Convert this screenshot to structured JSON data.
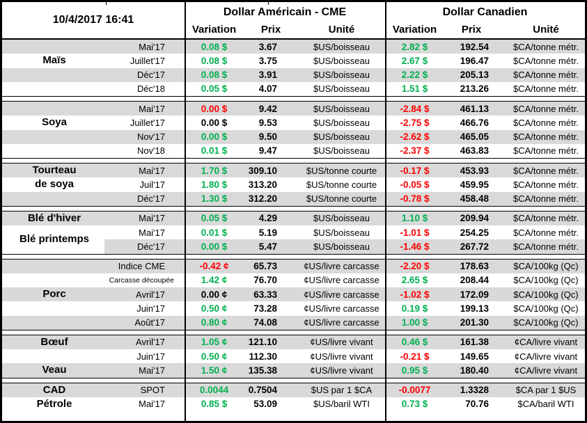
{
  "header": {
    "datetime": "10/4/2017 16:41",
    "us_group_title": "Dollar Américain - CME",
    "ca_group_title": "Dollar Canadien",
    "col_variation": "Variation",
    "col_prix": "Prix",
    "col_unite": "Unité"
  },
  "colors": {
    "green": "#00B050",
    "red": "#FF0000",
    "gray_row": "#D9D9D9",
    "border": "#000000"
  },
  "sections": [
    {
      "labels": [
        {
          "text": "Maïs",
          "row": 1,
          "span": 1
        }
      ],
      "rows": [
        {
          "month": "Mai'17",
          "us_var": "0.08 $",
          "us_var_color": "green",
          "us_prix": "3.67",
          "us_unit": "$US/boisseau",
          "ca_var": "2.82 $",
          "ca_var_color": "green",
          "ca_prix": "192.54",
          "ca_unit": "$CA/tonne métr.",
          "shade": "gray"
        },
        {
          "month": "Juillet'17",
          "us_var": "0.08 $",
          "us_var_color": "green",
          "us_prix": "3.75",
          "us_unit": "$US/boisseau",
          "ca_var": "2.67 $",
          "ca_var_color": "green",
          "ca_prix": "196.47",
          "ca_unit": "$CA/tonne métr.",
          "shade": "white"
        },
        {
          "month": "Déc'17",
          "us_var": "0.08 $",
          "us_var_color": "green",
          "us_prix": "3.91",
          "us_unit": "$US/boisseau",
          "ca_var": "2.22 $",
          "ca_var_color": "green",
          "ca_prix": "205.13",
          "ca_unit": "$CA/tonne métr.",
          "shade": "gray"
        },
        {
          "month": "Déc'18",
          "us_var": "0.05 $",
          "us_var_color": "green",
          "us_prix": "4.07",
          "us_unit": "$US/boisseau",
          "ca_var": "1.51 $",
          "ca_var_color": "green",
          "ca_prix": "213.26",
          "ca_unit": "$CA/tonne métr.",
          "shade": "white"
        }
      ]
    },
    {
      "labels": [
        {
          "text": "Soya",
          "row": 1,
          "span": 1
        }
      ],
      "rows": [
        {
          "month": "Mai'17",
          "us_var": "0.00 $",
          "us_var_color": "red",
          "us_prix": "9.42",
          "us_unit": "$US/boisseau",
          "ca_var": "-2.84 $",
          "ca_var_color": "red",
          "ca_prix": "461.13",
          "ca_unit": "$CA/tonne métr.",
          "shade": "gray"
        },
        {
          "month": "Juillet'17",
          "us_var": "0.00 $",
          "us_var_color": "black",
          "us_prix": "9.53",
          "us_unit": "$US/boisseau",
          "ca_var": "-2.75 $",
          "ca_var_color": "red",
          "ca_prix": "466.76",
          "ca_unit": "$CA/tonne métr.",
          "shade": "white"
        },
        {
          "month": "Nov'17",
          "us_var": "0.00 $",
          "us_var_color": "green",
          "us_prix": "9.50",
          "us_unit": "$US/boisseau",
          "ca_var": "-2.62 $",
          "ca_var_color": "red",
          "ca_prix": "465.05",
          "ca_unit": "$CA/tonne métr.",
          "shade": "gray"
        },
        {
          "month": "Nov'18",
          "us_var": "0.01 $",
          "us_var_color": "green",
          "us_prix": "9.47",
          "us_unit": "$US/boisseau",
          "ca_var": "-2.37 $",
          "ca_var_color": "red",
          "ca_prix": "463.83",
          "ca_unit": "$CA/tonne métr.",
          "shade": "white"
        }
      ]
    },
    {
      "labels": [
        {
          "text": "Tourteau\nde soya",
          "row": 0,
          "span": 2
        }
      ],
      "rows": [
        {
          "month": "Mai'17",
          "us_var": "1.70 $",
          "us_var_color": "green",
          "us_prix": "309.10",
          "us_unit": "$US/tonne courte",
          "ca_var": "-0.17 $",
          "ca_var_color": "red",
          "ca_prix": "453.93",
          "ca_unit": "$CA/tonne métr.",
          "shade": "gray"
        },
        {
          "month": "Juil'17",
          "us_var": "1.80 $",
          "us_var_color": "green",
          "us_prix": "313.20",
          "us_unit": "$US/tonne courte",
          "ca_var": "-0.05 $",
          "ca_var_color": "red",
          "ca_prix": "459.95",
          "ca_unit": "$CA/tonne métr.",
          "shade": "white"
        },
        {
          "month": "Déc'17",
          "us_var": "1.30 $",
          "us_var_color": "green",
          "us_prix": "312.20",
          "us_unit": "$US/tonne courte",
          "ca_var": "-0.78 $",
          "ca_var_color": "red",
          "ca_prix": "458.48",
          "ca_unit": "$CA/tonne métr.",
          "shade": "gray"
        }
      ]
    },
    {
      "labels": [
        {
          "text": "Blé d'hiver",
          "row": 0,
          "span": 1
        },
        {
          "text": "Blé printemps",
          "row": 1,
          "span": 2
        }
      ],
      "rows": [
        {
          "month": "Mai'17",
          "us_var": "0.05 $",
          "us_var_color": "green",
          "us_prix": "4.29",
          "us_unit": "$US/boisseau",
          "ca_var": "1.10 $",
          "ca_var_color": "green",
          "ca_prix": "209.94",
          "ca_unit": "$CA/tonne métr.",
          "shade": "gray"
        },
        {
          "month": "Mai'17",
          "us_var": "0.01 $",
          "us_var_color": "green",
          "us_prix": "5.19",
          "us_unit": "$US/boisseau",
          "ca_var": "-1.01 $",
          "ca_var_color": "red",
          "ca_prix": "254.25",
          "ca_unit": "$CA/tonne métr.",
          "shade": "white"
        },
        {
          "month": "Déc'17",
          "us_var": "0.00 $",
          "us_var_color": "green",
          "us_prix": "5.47",
          "us_unit": "$US/boisseau",
          "ca_var": "-1.46 $",
          "ca_var_color": "red",
          "ca_prix": "267.72",
          "ca_unit": "$CA/tonne métr.",
          "shade": "partial"
        }
      ]
    },
    {
      "labels": [
        {
          "text": "Porc",
          "row": 2,
          "span": 1
        }
      ],
      "rows": [
        {
          "month": "Indice CME",
          "us_var": "-0.42 ¢",
          "us_var_color": "red",
          "us_prix": "65.73",
          "us_unit": "¢US/livre carcasse",
          "ca_var": "-2.20 $",
          "ca_var_color": "red",
          "ca_prix": "178.63",
          "ca_unit": "$CA/100kg (Qc)",
          "shade": "gray"
        },
        {
          "month": "Carcasse découpée",
          "month_small": true,
          "us_var": "1.42 ¢",
          "us_var_color": "green",
          "us_prix": "76.70",
          "us_unit": "¢US/livre carcasse",
          "ca_var": "2.65 $",
          "ca_var_color": "green",
          "ca_prix": "208.44",
          "ca_unit": "$CA/100kg (Qc)",
          "shade": "white"
        },
        {
          "month": "Avril'17",
          "us_var": "0.00 ¢",
          "us_var_color": "black",
          "us_prix": "63.33",
          "us_unit": "¢US/livre carcasse",
          "ca_var": "-1.02 $",
          "ca_var_color": "red",
          "ca_prix": "172.09",
          "ca_unit": "$CA/100kg (Qc)",
          "shade": "gray"
        },
        {
          "month": "Juin'17",
          "us_var": "0.50 ¢",
          "us_var_color": "green",
          "us_prix": "73.28",
          "us_unit": "¢US/livre carcasse",
          "ca_var": "0.19 $",
          "ca_var_color": "green",
          "ca_prix": "199.13",
          "ca_unit": "$CA/100kg (Qc)",
          "shade": "white"
        },
        {
          "month": "Août'17",
          "us_var": "0.80 ¢",
          "us_var_color": "green",
          "us_prix": "74.08",
          "us_unit": "¢US/livre carcasse",
          "ca_var": "1.00 $",
          "ca_var_color": "green",
          "ca_prix": "201.30",
          "ca_unit": "$CA/100kg (Qc)",
          "shade": "gray"
        }
      ]
    },
    {
      "labels": [
        {
          "text": "Bœuf",
          "row": 0,
          "span": 1
        },
        {
          "text": "Veau",
          "row": 2,
          "span": 1
        }
      ],
      "rows": [
        {
          "month": "Avril'17",
          "us_var": "1.05 ¢",
          "us_var_color": "green",
          "us_prix": "121.10",
          "us_unit": "¢US/livre vivant",
          "ca_var": "0.46 $",
          "ca_var_color": "green",
          "ca_prix": "161.38",
          "ca_unit": "¢CA/livre vivant",
          "shade": "gray"
        },
        {
          "month": "Juin'17",
          "us_var": "0.50 ¢",
          "us_var_color": "green",
          "us_prix": "112.30",
          "us_unit": "¢US/livre vivant",
          "ca_var": "-0.21 $",
          "ca_var_color": "red",
          "ca_prix": "149.65",
          "ca_unit": "¢CA/livre vivant",
          "shade": "white"
        },
        {
          "month": "Mai'17",
          "us_var": "1.50 ¢",
          "us_var_color": "green",
          "us_prix": "135.38",
          "us_unit": "¢US/livre vivant",
          "ca_var": "0.95 $",
          "ca_var_color": "green",
          "ca_prix": "180.40",
          "ca_unit": "¢CA/livre vivant",
          "shade": "gray"
        }
      ]
    },
    {
      "labels": [
        {
          "text": "CAD",
          "row": 0,
          "span": 1
        },
        {
          "text": "Pétrole",
          "row": 1,
          "span": 1
        }
      ],
      "rows": [
        {
          "month": "SPOT",
          "us_var": "0.0044",
          "us_var_color": "green",
          "us_prix": "0.7504",
          "us_unit": "$US par 1 $CA",
          "ca_var": "-0.0077",
          "ca_var_color": "red",
          "ca_prix": "1.3328",
          "ca_unit": "$CA par 1 $US",
          "shade": "gray"
        },
        {
          "month": "Mai'17",
          "us_var": "0.85 $",
          "us_var_color": "green",
          "us_prix": "53.09",
          "us_unit": "$US/baril WTI",
          "ca_var": "0.73 $",
          "ca_var_color": "green",
          "ca_prix": "70.76",
          "ca_unit": "$CA/baril WTI",
          "shade": "white"
        }
      ]
    }
  ]
}
